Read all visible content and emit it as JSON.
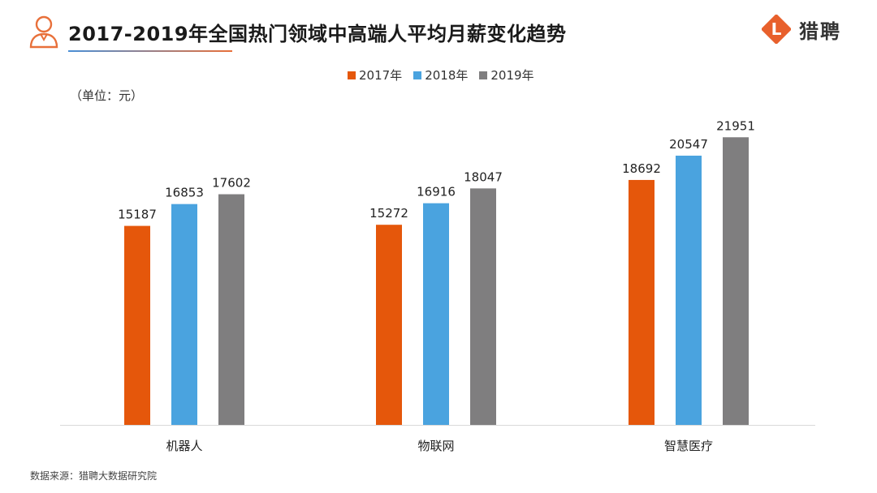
{
  "header": {
    "title": "2017-2019年全国热门领域中高端人平均月薪变化趋势",
    "brand_name": "猎聘",
    "brand_logo_letter": "L"
  },
  "colors": {
    "accent_orange": "#e5570b",
    "accent_blue": "#4aa3df",
    "accent_gray": "#7f7e7f",
    "brand_orange": "#e8602c"
  },
  "unit_label": "（单位：元）",
  "source": "数据来源：猎聘大数据研究院",
  "chart_data": {
    "type": "bar",
    "title": "2017-2019年全国热门领域中高端人平均月薪变化趋势",
    "xlabel": "",
    "ylabel": "（单位：元）",
    "ylim": [
      0,
      25000
    ],
    "grid": false,
    "legend_position": "top",
    "categories": [
      "机器人",
      "物联网",
      "智慧医疗"
    ],
    "series": [
      {
        "name": "2017年",
        "color": "#e5570b",
        "values": [
          15187,
          15272,
          18692
        ]
      },
      {
        "name": "2018年",
        "color": "#4aa3df",
        "values": [
          16853,
          16916,
          20547
        ]
      },
      {
        "name": "2019年",
        "color": "#7f7e7f",
        "values": [
          17602,
          18047,
          21951
        ]
      }
    ]
  }
}
